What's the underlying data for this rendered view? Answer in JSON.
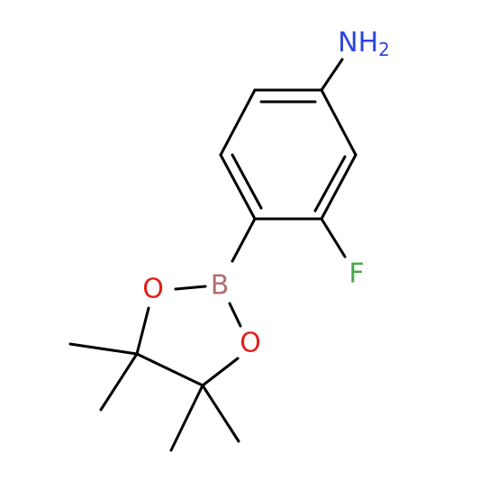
{
  "atoms": [
    {
      "label": "NH",
      "subscript": "2"
    },
    {
      "label": "F"
    },
    {
      "label": "B"
    },
    {
      "label": "O"
    },
    {
      "label": "O"
    }
  ]
}
